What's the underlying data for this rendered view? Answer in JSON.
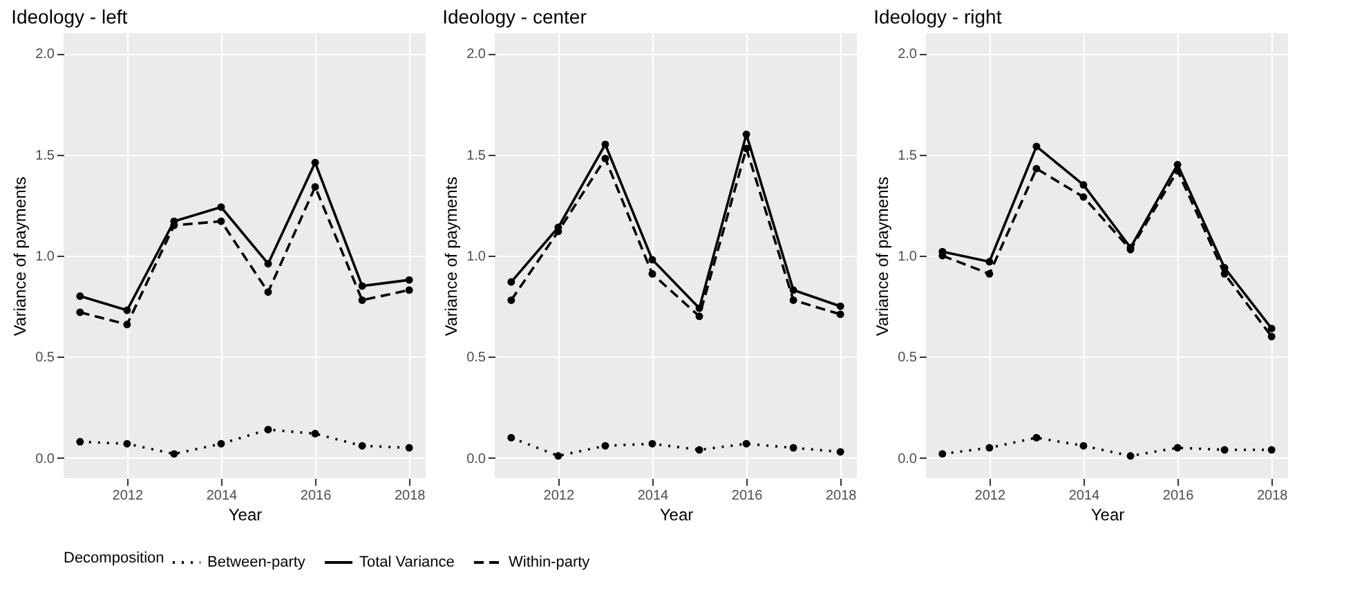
{
  "chart_data": [
    {
      "type": "line",
      "title": "Ideology - left",
      "xlabel": "Year",
      "ylabel": "Variance of payments",
      "legend_title": "Decomposition",
      "legend": "bottom",
      "grid": true,
      "marker": "circle",
      "x": [
        2011,
        2012,
        2013,
        2014,
        2015,
        2016,
        2017,
        2018
      ],
      "xlim": [
        2010.65,
        2018.35
      ],
      "xticks": [
        2012,
        2014,
        2016,
        2018
      ],
      "ylim": [
        -0.1,
        2.1
      ],
      "yticks": [
        {
          "value": 0,
          "label": "0.0"
        },
        {
          "value": 0.5,
          "label": "0.5"
        },
        {
          "value": 1,
          "label": "1.0"
        },
        {
          "value": 1.5,
          "label": "1.5"
        },
        {
          "value": 2,
          "label": "2.0"
        }
      ],
      "series": [
        {
          "name": "Between-party",
          "color": "#000000",
          "line_style": "dotted",
          "values": [
            0.08,
            0.07,
            0.02,
            0.07,
            0.14,
            0.12,
            0.06,
            0.05
          ]
        },
        {
          "name": "Total Variance",
          "color": "#000000",
          "line_style": "solid",
          "values": [
            0.8,
            0.73,
            1.17,
            1.24,
            0.96,
            1.46,
            0.85,
            0.88
          ]
        },
        {
          "name": "Within-party",
          "color": "#000000",
          "line_style": "dashed",
          "values": [
            0.72,
            0.66,
            1.15,
            1.17,
            0.82,
            1.34,
            0.78,
            0.83
          ]
        }
      ]
    },
    {
      "type": "line",
      "title": "Ideology - center",
      "xlabel": "Year",
      "ylabel": "Variance of payments",
      "grid": true,
      "marker": "circle",
      "x": [
        2011,
        2012,
        2013,
        2014,
        2015,
        2016,
        2017,
        2018
      ],
      "xlim": [
        2010.65,
        2018.35
      ],
      "xticks": [
        2012,
        2014,
        2016,
        2018
      ],
      "ylim": [
        -0.1,
        2.1
      ],
      "yticks": [
        {
          "value": 0,
          "label": "0.0"
        },
        {
          "value": 0.5,
          "label": "0.5"
        },
        {
          "value": 1,
          "label": "1.0"
        },
        {
          "value": 1.5,
          "label": "1.5"
        },
        {
          "value": 2,
          "label": "2.0"
        }
      ],
      "series": [
        {
          "name": "Between-party",
          "color": "#000000",
          "line_style": "dotted",
          "values": [
            0.1,
            0.01,
            0.06,
            0.07,
            0.04,
            0.07,
            0.05,
            0.03
          ]
        },
        {
          "name": "Total Variance",
          "color": "#000000",
          "line_style": "solid",
          "values": [
            0.87,
            1.14,
            1.55,
            0.98,
            0.74,
            1.6,
            0.83,
            0.75
          ]
        },
        {
          "name": "Within-party",
          "color": "#000000",
          "line_style": "dashed",
          "values": [
            0.78,
            1.12,
            1.48,
            0.91,
            0.7,
            1.53,
            0.78,
            0.71
          ]
        }
      ]
    },
    {
      "type": "line",
      "title": "Ideology - right",
      "xlabel": "Year",
      "ylabel": "Variance of payments",
      "grid": true,
      "marker": "circle",
      "x": [
        2011,
        2012,
        2013,
        2014,
        2015,
        2016,
        2017,
        2018
      ],
      "xlim": [
        2010.65,
        2018.35
      ],
      "xticks": [
        2012,
        2014,
        2016,
        2018
      ],
      "ylim": [
        -0.1,
        2.1
      ],
      "yticks": [
        {
          "value": 0,
          "label": "0.0"
        },
        {
          "value": 0.5,
          "label": "0.5"
        },
        {
          "value": 1,
          "label": "1.0"
        },
        {
          "value": 1.5,
          "label": "1.5"
        },
        {
          "value": 2,
          "label": "2.0"
        }
      ],
      "series": [
        {
          "name": "Between-party",
          "color": "#000000",
          "line_style": "dotted",
          "values": [
            0.02,
            0.05,
            0.1,
            0.06,
            0.01,
            0.05,
            0.04,
            0.04
          ]
        },
        {
          "name": "Total Variance",
          "color": "#000000",
          "line_style": "solid",
          "values": [
            1.02,
            0.97,
            1.54,
            1.35,
            1.04,
            1.45,
            0.94,
            0.64
          ]
        },
        {
          "name": "Within-party",
          "color": "#000000",
          "line_style": "dashed",
          "values": [
            1.0,
            0.91,
            1.43,
            1.29,
            1.03,
            1.42,
            0.91,
            0.6
          ]
        }
      ]
    }
  ]
}
